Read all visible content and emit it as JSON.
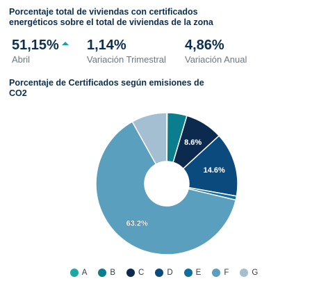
{
  "header": {
    "title": "Porcentaje total de viviendas con certificados energéticos sobre el total de viviendas de la zona"
  },
  "kpis": [
    {
      "value": "51,15%",
      "label": "Abril",
      "trend": "up"
    },
    {
      "value": "1,14%",
      "label": "Variación Trimestral"
    },
    {
      "value": "4,86%",
      "label": "Variación Anual"
    }
  ],
  "colors": {
    "A": "#1ea7a5",
    "B": "#0a7e8c",
    "C": "#0b2a4d",
    "D": "#0b4a7d",
    "E": "#0e6e9e",
    "F": "#5b9fbf",
    "G": "#a5bfd2",
    "trend_up": "#16a3a8"
  },
  "chart_data": {
    "type": "pie",
    "title": "Porcentaje de Certificados según emisiones de CO2",
    "donut": true,
    "legend_position": "bottom",
    "categories": [
      "A",
      "B",
      "C",
      "D",
      "E",
      "F",
      "G"
    ],
    "values": [
      0.1,
      4.5,
      8.6,
      14.6,
      0.9,
      63.2,
      8.1
    ],
    "labels": [
      "",
      "",
      "8.6%",
      "14.6%",
      "",
      "63.2%",
      ""
    ]
  }
}
